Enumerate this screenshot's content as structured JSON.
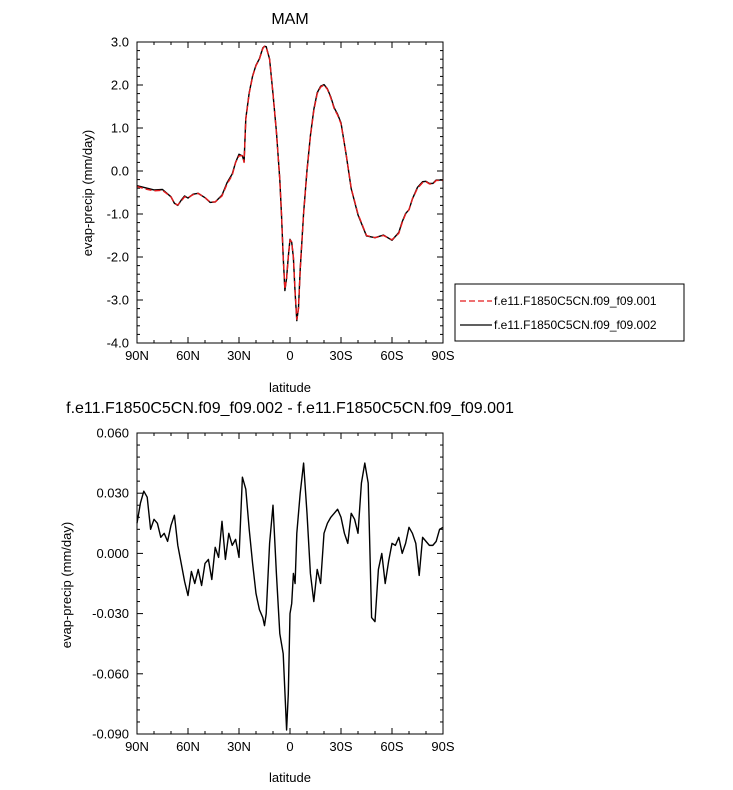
{
  "chart_data": [
    {
      "type": "line",
      "title": "MAM",
      "xlabel": "latitude",
      "ylabel": "evap-precip (mm/day)",
      "xlim": [
        90,
        -90
      ],
      "ylim": [
        -4.0,
        3.0
      ],
      "x_ticks": [
        90,
        60,
        30,
        0,
        -30,
        -60,
        -90
      ],
      "x_tick_labels": [
        "90N",
        "60N",
        "30N",
        "0",
        "30S",
        "60S",
        "90S"
      ],
      "y_ticks": [
        3.0,
        2.0,
        1.0,
        0.0,
        -1.0,
        -2.0,
        -3.0,
        -4.0
      ],
      "y_tick_labels": [
        "3.0",
        "2.0",
        "1.0",
        "0.0",
        "-1.0",
        "-2.0",
        "-3.0",
        "-4.0"
      ],
      "grid": false,
      "legend_position": "right",
      "series": [
        {
          "name": "f.e11.F1850C5CN.f09_f09.001",
          "color": "#e31a1c",
          "dash": "dashed",
          "x": [
            90,
            85,
            80,
            75,
            70,
            68,
            66,
            64,
            62,
            60,
            57,
            54,
            50,
            47,
            44,
            40,
            37,
            34,
            32,
            30,
            28,
            27,
            26,
            24,
            22,
            20,
            18,
            16,
            15,
            14,
            12,
            10,
            8,
            6,
            5,
            4,
            3,
            2,
            1,
            0,
            -1,
            -2,
            -3,
            -4,
            -5,
            -6,
            -8,
            -10,
            -12,
            -14,
            -16,
            -18,
            -20,
            -22,
            -24,
            -26,
            -28,
            -30,
            -33,
            -36,
            -40,
            -45,
            -50,
            -55,
            -60,
            -64,
            -66,
            -68,
            -70,
            -72,
            -75,
            -78,
            -80,
            -82,
            -84,
            -86,
            -88,
            -90
          ],
          "y": [
            -0.36,
            -0.42,
            -0.46,
            -0.45,
            -0.6,
            -0.75,
            -0.79,
            -0.7,
            -0.6,
            -0.62,
            -0.55,
            -0.52,
            -0.62,
            -0.72,
            -0.72,
            -0.58,
            -0.3,
            -0.1,
            0.2,
            0.35,
            0.36,
            0.2,
            1.2,
            1.8,
            2.2,
            2.45,
            2.6,
            2.85,
            2.9,
            2.88,
            2.6,
            1.8,
            0.9,
            -0.2,
            -1.0,
            -2.0,
            -2.75,
            -2.5,
            -2.0,
            -1.6,
            -1.65,
            -2.0,
            -2.8,
            -3.45,
            -3.2,
            -2.3,
            -1.0,
            0.0,
            0.8,
            1.4,
            1.8,
            1.95,
            2.0,
            1.9,
            1.7,
            1.45,
            1.3,
            1.1,
            0.4,
            -0.4,
            -1.0,
            -1.5,
            -1.55,
            -1.5,
            -1.6,
            -1.45,
            -1.2,
            -1.0,
            -0.9,
            -0.65,
            -0.4,
            -0.27,
            -0.25,
            -0.3,
            -0.3,
            -0.22,
            -0.22,
            -0.22
          ]
        },
        {
          "name": "f.e11.F1850C5CN.f09_f09.002",
          "color": "#000000",
          "dash": "solid",
          "x": [
            90,
            85,
            80,
            75,
            70,
            68,
            66,
            64,
            62,
            60,
            57,
            54,
            50,
            47,
            44,
            40,
            37,
            34,
            32,
            30,
            28,
            27,
            26,
            24,
            22,
            20,
            18,
            16,
            15,
            14,
            12,
            10,
            8,
            6,
            5,
            4,
            3,
            2,
            1,
            0,
            -1,
            -2,
            -3,
            -4,
            -5,
            -6,
            -8,
            -10,
            -12,
            -14,
            -16,
            -18,
            -20,
            -22,
            -24,
            -26,
            -28,
            -30,
            -33,
            -36,
            -40,
            -45,
            -50,
            -55,
            -60,
            -64,
            -66,
            -68,
            -70,
            -72,
            -75,
            -78,
            -80,
            -82,
            -84,
            -86,
            -88,
            -90
          ],
          "y": [
            -0.34,
            -0.39,
            -0.44,
            -0.43,
            -0.6,
            -0.75,
            -0.8,
            -0.68,
            -0.58,
            -0.63,
            -0.54,
            -0.52,
            -0.62,
            -0.73,
            -0.72,
            -0.56,
            -0.27,
            -0.07,
            0.2,
            0.39,
            0.35,
            0.22,
            1.22,
            1.82,
            2.21,
            2.46,
            2.61,
            2.86,
            2.9,
            2.89,
            2.6,
            1.79,
            0.92,
            -0.2,
            -1.02,
            -2.0,
            -2.78,
            -2.49,
            -1.99,
            -1.59,
            -1.66,
            -2.02,
            -2.83,
            -3.48,
            -3.18,
            -2.29,
            -0.98,
            0.02,
            0.82,
            1.43,
            1.82,
            1.97,
            2.01,
            1.91,
            1.72,
            1.47,
            1.32,
            1.12,
            0.39,
            -0.41,
            -1.02,
            -1.51,
            -1.55,
            -1.49,
            -1.61,
            -1.43,
            -1.18,
            -0.99,
            -0.9,
            -0.65,
            -0.38,
            -0.25,
            -0.24,
            -0.29,
            -0.29,
            -0.21,
            -0.21,
            -0.21
          ]
        }
      ]
    },
    {
      "type": "line",
      "title": "f.e11.F1850C5CN.f09_f09.002 - f.e11.F1850C5CN.f09_f09.001",
      "xlabel": "latitude",
      "ylabel": "evap-precip (mm/day)",
      "xlim": [
        90,
        -90
      ],
      "ylim": [
        -0.09,
        0.06
      ],
      "x_ticks": [
        90,
        60,
        30,
        0,
        -30,
        -60,
        -90
      ],
      "x_tick_labels": [
        "90N",
        "60N",
        "30N",
        "0",
        "30S",
        "60S",
        "90S"
      ],
      "y_ticks": [
        0.06,
        0.03,
        0.0,
        -0.03,
        -0.06,
        -0.09
      ],
      "y_tick_labels": [
        "0.060",
        "0.030",
        "0.000",
        "-0.030",
        "-0.060",
        "-0.090"
      ],
      "grid": false,
      "series": [
        {
          "color": "#000000",
          "dash": "solid",
          "x": [
            90,
            88,
            86,
            84,
            82,
            80,
            78,
            76,
            74,
            72,
            70,
            68,
            66,
            64,
            62,
            60,
            58,
            56,
            54,
            52,
            50,
            48,
            46,
            44,
            42,
            40,
            38,
            36,
            34,
            32,
            30,
            28,
            26,
            24,
            22,
            20,
            18,
            16,
            15,
            14,
            12,
            10,
            8,
            6,
            4,
            2,
            1,
            0,
            -1,
            -2,
            -3,
            -4,
            -5,
            -6,
            -8,
            -10,
            -12,
            -14,
            -16,
            -18,
            -20,
            -22,
            -24,
            -26,
            -28,
            -30,
            -32,
            -34,
            -36,
            -38,
            -40,
            -42,
            -44,
            -46,
            -48,
            -50,
            -52,
            -54,
            -56,
            -58,
            -60,
            -62,
            -64,
            -66,
            -68,
            -70,
            -72,
            -74,
            -76,
            -78,
            -80,
            -82,
            -84,
            -86,
            -88,
            -90
          ],
          "y": [
            0.015,
            0.025,
            0.031,
            0.028,
            0.012,
            0.017,
            0.015,
            0.008,
            0.01,
            0.006,
            0.014,
            0.019,
            0.004,
            -0.005,
            -0.014,
            -0.021,
            -0.009,
            -0.015,
            -0.008,
            -0.016,
            -0.005,
            -0.003,
            -0.013,
            0.003,
            -0.002,
            0.016,
            -0.003,
            0.01,
            0.004,
            0.007,
            -0.002,
            0.038,
            0.032,
            0.012,
            -0.005,
            -0.02,
            -0.028,
            -0.032,
            -0.036,
            -0.03,
            0.005,
            0.024,
            -0.01,
            -0.04,
            -0.05,
            -0.088,
            -0.07,
            -0.03,
            -0.025,
            -0.01,
            -0.015,
            0.01,
            0.02,
            0.03,
            0.045,
            0.02,
            -0.01,
            -0.024,
            -0.008,
            -0.015,
            0.01,
            0.015,
            0.018,
            0.02,
            0.022,
            0.018,
            0.01,
            0.005,
            0.02,
            0.017,
            0.01,
            0.035,
            0.045,
            0.035,
            -0.032,
            -0.034,
            -0.008,
            0.0,
            -0.015,
            -0.004,
            0.005,
            0.004,
            0.008,
            0.0,
            0.005,
            0.013,
            0.01,
            0.005,
            -0.011,
            0.008,
            0.006,
            0.004,
            0.004,
            0.006,
            0.012,
            0.013
          ]
        }
      ]
    }
  ]
}
